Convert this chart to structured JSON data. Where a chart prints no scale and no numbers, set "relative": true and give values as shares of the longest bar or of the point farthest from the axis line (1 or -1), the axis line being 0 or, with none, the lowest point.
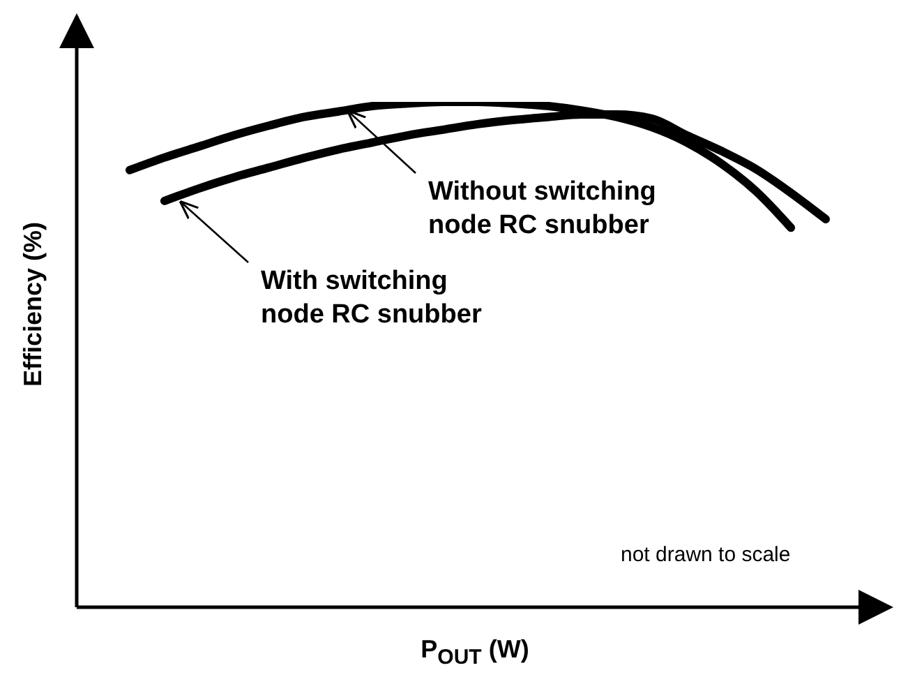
{
  "chart_data": {
    "type": "line",
    "relative": true,
    "xlabel": "P$_{OUT}$ (W)",
    "ylabel": "Efficiency (%)",
    "categories": [
      null,
      null,
      null,
      null,
      null,
      null,
      null,
      null,
      null,
      null,
      null,
      null,
      null,
      null,
      null,
      null,
      null,
      null,
      null,
      null,
      null
    ],
    "series": [
      {
        "name": "Without switching node RC snubber",
        "color": "#000000",
        "values": [
          0.865,
          0.89,
          0.912,
          0.934,
          0.953,
          0.97,
          0.981,
          0.992,
          0.997,
          1,
          1,
          0.997,
          0.992,
          0.983,
          0.97,
          0.95,
          0.92,
          0.878,
          0.823,
          0.751,
          null
        ]
      },
      {
        "name": "With switching node RC snubber",
        "color": "#000000",
        "values": [
          null,
          0.804,
          0.829,
          0.851,
          0.87,
          0.889,
          0.906,
          0.92,
          0.934,
          0.945,
          0.956,
          0.964,
          0.97,
          0.975,
          0.975,
          0.967,
          0.934,
          0.903,
          0.867,
          0.82,
          0.768
        ]
      }
    ],
    "annotations": [
      "not drawn to scale"
    ],
    "legend": false,
    "marker": "none",
    "line_style": "solid",
    "grid": false
  }
}
